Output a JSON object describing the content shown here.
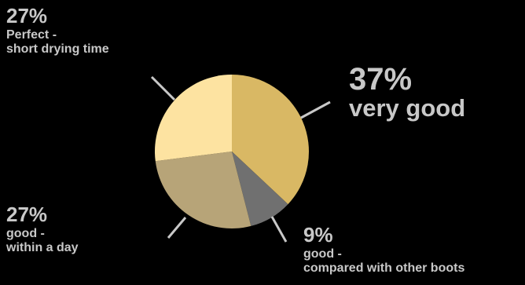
{
  "chart_data": {
    "type": "pie",
    "title": "",
    "slices": [
      {
        "percent": "37%",
        "value": 37,
        "line1": "very good",
        "line2": "",
        "color": "#d9b864"
      },
      {
        "percent": "9%",
        "value": 9,
        "line1": "good -",
        "line2": "compared with other boots",
        "color": "#707070"
      },
      {
        "percent": "27%",
        "value": 27,
        "line1": "good -",
        "line2": "within a day",
        "color": "#b7a478"
      },
      {
        "percent": "27%",
        "value": 27,
        "line1": "Perfect -",
        "line2": "short drying time",
        "color": "#fde3a1"
      }
    ],
    "start": "12 o'clock",
    "direction": "clockwise",
    "leader_line_color": "#c8c8c8",
    "label_color": "#c8c8c8"
  }
}
